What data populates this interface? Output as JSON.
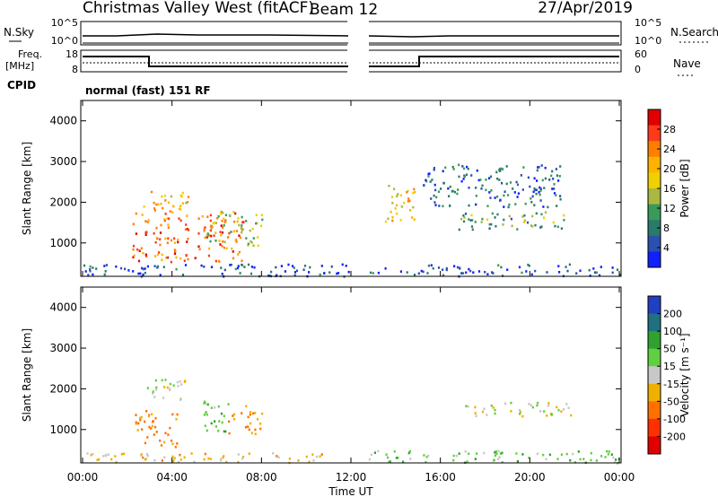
{
  "header": {
    "title": "Christmas Valley West (fitACF)",
    "beam": "Beam 12",
    "date": "27/Apr/2019"
  },
  "panels": {
    "nsky": {
      "label": "N.Sky",
      "ticks": [
        "10^5",
        "10^0"
      ]
    },
    "nsearch": {
      "label": "N.Search",
      "ticks": [
        "10^5",
        "10^0"
      ]
    },
    "freq": {
      "label_line1": "Freq.",
      "label_line2": "[MHz]",
      "ticks": [
        "18",
        "8"
      ]
    },
    "nave": {
      "label": "Nave",
      "ticks": [
        "60",
        "0"
      ]
    },
    "cpid": {
      "label": "CPID",
      "value": "normal (fast) 151 RF"
    }
  },
  "axes": {
    "ylabel": "Slant Range [km]",
    "yticks": [
      "4000",
      "3000",
      "2000",
      "1000"
    ],
    "xticks": [
      "00:00",
      "04:00",
      "08:00",
      "12:00",
      "16:00",
      "20:00",
      "00:00"
    ],
    "xlabel": "Time UT"
  },
  "colorbars": {
    "power": {
      "label": "Power [dB]",
      "ticks": [
        "28",
        "24",
        "20",
        "16",
        "12",
        "8",
        "4"
      ],
      "colors": [
        "#e00000",
        "#ff3a1a",
        "#ff7f00",
        "#ffb300",
        "#f0d000",
        "#a8b840",
        "#3a9a5a",
        "#2a7a6a",
        "#2a50b0",
        "#1020ff"
      ]
    },
    "velocity": {
      "label": "Velocity [m s⁻¹]",
      "ticks": [
        "200",
        "100",
        "50",
        "15",
        "-15",
        "-50",
        "-100",
        "-200"
      ],
      "colors": [
        "#2040c0",
        "#207080",
        "#30a030",
        "#60d040",
        "#c8c8c8",
        "#f0b000",
        "#ff7000",
        "#ff3000",
        "#e00000"
      ]
    }
  },
  "chart_data": {
    "type": "heatmap",
    "x_range_hours": [
      0,
      24
    ],
    "y_range_km": [
      180,
      4500
    ],
    "data_gap_hours": [
      12.0,
      12.75
    ],
    "freq_mhz": [
      {
        "from": 0,
        "to": 3,
        "value": 12
      },
      {
        "from": 3,
        "to": 12,
        "value": 10
      },
      {
        "from": 12.75,
        "to": 15,
        "value": 10
      },
      {
        "from": 15,
        "to": 24,
        "value": 12
      }
    ],
    "power_regions_dB": [
      {
        "t": [
          2.7,
          4.7
        ],
        "r": [
          1750,
          2350
        ],
        "value": 20
      },
      {
        "t": [
          2.2,
          7.2
        ],
        "r": [
          550,
          1800
        ],
        "value": 24
      },
      {
        "t": [
          5.5,
          8.0
        ],
        "r": [
          950,
          1800
        ],
        "value": 14
      },
      {
        "t": [
          13.5,
          14.9
        ],
        "r": [
          1550,
          2500
        ],
        "value": 18
      },
      {
        "t": [
          16.8,
          21.8
        ],
        "r": [
          1350,
          1800
        ],
        "value": 12
      },
      {
        "t": [
          15.2,
          21.5
        ],
        "r": [
          1900,
          2950
        ],
        "value": 8
      },
      {
        "t": [
          0,
          24
        ],
        "r": [
          200,
          500
        ],
        "value": 6
      }
    ],
    "velocity_regions_ms": [
      {
        "t": [
          2.7,
          4.7
        ],
        "r": [
          1750,
          2300
        ],
        "value": 0
      },
      {
        "t": [
          2.3,
          4.2
        ],
        "r": [
          600,
          1500
        ],
        "value": -60
      },
      {
        "t": [
          5.3,
          6.5
        ],
        "r": [
          900,
          1800
        ],
        "value": 40
      },
      {
        "t": [
          6.5,
          8.0
        ],
        "r": [
          900,
          1600
        ],
        "value": -50
      },
      {
        "t": [
          16.8,
          21.8
        ],
        "r": [
          1350,
          1700
        ],
        "value": 0
      },
      {
        "t": [
          12.75,
          24
        ],
        "r": [
          200,
          500
        ],
        "value": 30
      },
      {
        "t": [
          0,
          11
        ],
        "r": [
          200,
          450
        ],
        "value": -30
      }
    ]
  }
}
